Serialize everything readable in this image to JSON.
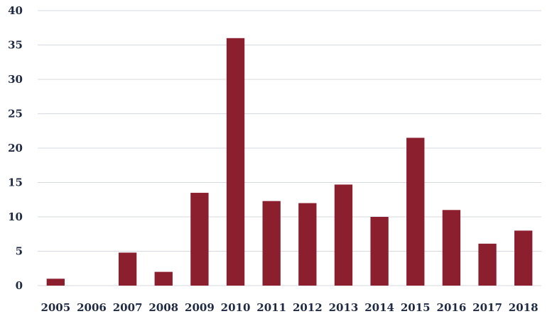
{
  "chart_data": {
    "type": "bar",
    "title": "",
    "xlabel": "",
    "ylabel": "",
    "categories": [
      "2005",
      "2006",
      "2007",
      "2008",
      "2009",
      "2010",
      "2011",
      "2012",
      "2013",
      "2014",
      "2015",
      "2016",
      "2017",
      "2018"
    ],
    "values": [
      1,
      0,
      4.8,
      2,
      13.5,
      36,
      12.3,
      12,
      14.7,
      10,
      21.5,
      11,
      6.1,
      8
    ],
    "ylim": [
      0,
      40
    ],
    "yticks": [
      0,
      5,
      10,
      15,
      20,
      25,
      30,
      35,
      40
    ],
    "grid": true,
    "legend": "none",
    "bar_color": "#8c1f2e"
  }
}
